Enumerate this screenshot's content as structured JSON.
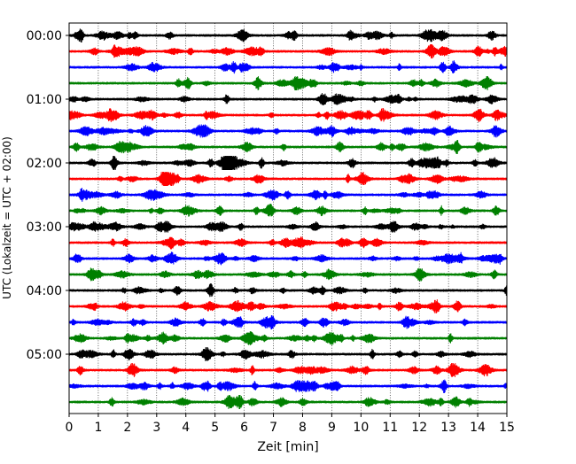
{
  "chart_data": {
    "type": "line",
    "title": "",
    "xlabel": "Zeit  [min]",
    "ylabel": "UTC (Lokalzeit = UTC + 02:00)",
    "xlim": [
      0,
      15
    ],
    "x_ticks": [
      0,
      1,
      2,
      3,
      4,
      5,
      6,
      7,
      8,
      9,
      10,
      11,
      12,
      13,
      14,
      15
    ],
    "x_tick_labels": [
      "0",
      "1",
      "2",
      "3",
      "4",
      "5",
      "6",
      "7",
      "8",
      "9",
      "10",
      "11",
      "12",
      "13",
      "14",
      "15"
    ],
    "y_tick_labels": [
      "00:00",
      "01:00",
      "02:00",
      "03:00",
      "04:00",
      "05:00"
    ],
    "y_tick_trace_index": [
      0,
      4,
      8,
      12,
      16,
      20
    ],
    "x_grid": true,
    "x_grid_style": "dotted",
    "trace_interval_minutes": 15,
    "trace_colors": [
      "#000000",
      "#ff0000",
      "#0000ff",
      "#008000"
    ],
    "traces": [
      {
        "start": "00:00"
      },
      {
        "start": "00:15"
      },
      {
        "start": "00:30"
      },
      {
        "start": "00:45"
      },
      {
        "start": "01:00"
      },
      {
        "start": "01:15"
      },
      {
        "start": "01:30"
      },
      {
        "start": "01:45"
      },
      {
        "start": "02:00"
      },
      {
        "start": "02:15"
      },
      {
        "start": "02:30"
      },
      {
        "start": "02:45"
      },
      {
        "start": "03:00"
      },
      {
        "start": "03:15"
      },
      {
        "start": "03:30"
      },
      {
        "start": "03:45"
      },
      {
        "start": "04:00"
      },
      {
        "start": "04:15"
      },
      {
        "start": "04:30"
      },
      {
        "start": "04:45"
      },
      {
        "start": "05:00"
      },
      {
        "start": "05:15"
      },
      {
        "start": "05:30"
      },
      {
        "start": "05:45"
      }
    ]
  }
}
